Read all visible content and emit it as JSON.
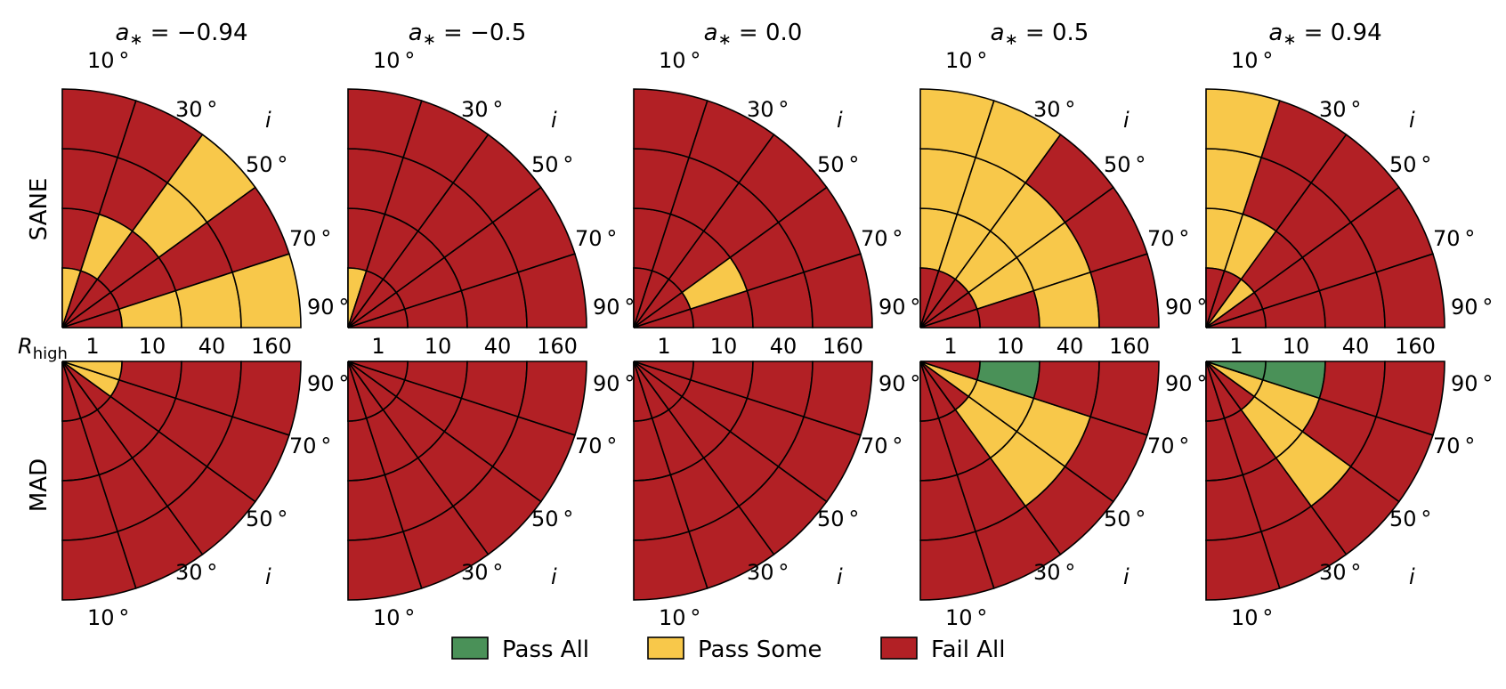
{
  "chart_data": {
    "type": "polar-grid",
    "colors": {
      "pass_all": "#4a9158",
      "pass_some": "#f8c84a",
      "fail_all": "#b22025",
      "edge": "#000000"
    },
    "legend": [
      {
        "key": "pass_all",
        "label": "Pass All"
      },
      {
        "key": "pass_some",
        "label": "Pass Some"
      },
      {
        "key": "fail_all",
        "label": "Fail All"
      }
    ],
    "legend_placement": "bottom-center",
    "radial_axis": {
      "name": "R",
      "subscript": "high",
      "ticks": [
        "1",
        "10",
        "40",
        "160"
      ]
    },
    "inclination_axis": {
      "name": "i",
      "ticks": [
        "10",
        "30",
        "50",
        "70",
        "90"
      ],
      "unit": "°"
    },
    "rows": [
      "SANE",
      "MAD"
    ],
    "columns": [
      {
        "a_star": "−0.94",
        "SANE": [
          [
            "Y",
            "R",
            "R",
            "R",
            "R"
          ],
          [
            "R",
            "R",
            "Y",
            "R",
            "R"
          ],
          [
            "R",
            "R",
            "R",
            "Y",
            "Y"
          ],
          [
            "R",
            "R",
            "R",
            "R",
            "R"
          ],
          [
            "R",
            "R",
            "Y",
            "Y",
            "Y"
          ]
        ],
        "MAD": [
          [
            "R",
            "R",
            "R",
            "R",
            "R"
          ],
          [
            "R",
            "R",
            "R",
            "R",
            "R"
          ],
          [
            "R",
            "R",
            "R",
            "R",
            "R"
          ],
          [
            "Y",
            "R",
            "R",
            "R",
            "R"
          ],
          [
            "Y",
            "R",
            "R",
            "R",
            "R"
          ]
        ]
      },
      {
        "a_star": "−0.5",
        "SANE": [
          [
            "Y",
            "R",
            "R",
            "R",
            "R"
          ],
          [
            "R",
            "R",
            "R",
            "R",
            "R"
          ],
          [
            "R",
            "R",
            "R",
            "R",
            "R"
          ],
          [
            "R",
            "R",
            "R",
            "R",
            "R"
          ],
          [
            "R",
            "R",
            "R",
            "R",
            "R"
          ]
        ],
        "MAD": [
          [
            "R",
            "R",
            "R",
            "R",
            "R"
          ],
          [
            "R",
            "R",
            "R",
            "R",
            "R"
          ],
          [
            "R",
            "R",
            "R",
            "R",
            "R"
          ],
          [
            "R",
            "R",
            "R",
            "R",
            "R"
          ],
          [
            "R",
            "R",
            "R",
            "R",
            "R"
          ]
        ]
      },
      {
        "a_star": "0.0",
        "SANE": [
          [
            "R",
            "R",
            "R",
            "R",
            "R"
          ],
          [
            "R",
            "R",
            "R",
            "R",
            "R"
          ],
          [
            "R",
            "Y",
            "R",
            "R",
            "R"
          ],
          [
            "R",
            "Y",
            "Y",
            "R",
            "R"
          ],
          [
            "R",
            "R",
            "R",
            "R",
            "R"
          ]
        ],
        "MAD": [
          [
            "R",
            "R",
            "R",
            "R",
            "R"
          ],
          [
            "R",
            "R",
            "R",
            "R",
            "R"
          ],
          [
            "R",
            "R",
            "R",
            "R",
            "R"
          ],
          [
            "R",
            "R",
            "R",
            "R",
            "R"
          ],
          [
            "R",
            "R",
            "R",
            "R",
            "R"
          ]
        ]
      },
      {
        "a_star": "0.5",
        "SANE": [
          [
            "R",
            "Y",
            "Y",
            "Y",
            "Y"
          ],
          [
            "R",
            "Y",
            "Y",
            "Y",
            "Y"
          ],
          [
            "R",
            "Y",
            "Y",
            "Y",
            "R"
          ],
          [
            "R",
            "R",
            "Y",
            "Y",
            "R"
          ],
          [
            "R",
            "R",
            "R",
            "Y",
            "R"
          ]
        ],
        "MAD": [
          [
            "R",
            "R",
            "R",
            "R",
            "R"
          ],
          [
            "R",
            "R",
            "R",
            "R",
            "R"
          ],
          [
            "R",
            "R",
            "Y",
            "Y",
            "R"
          ],
          [
            "Y",
            "Y",
            "Y",
            "Y",
            "R"
          ],
          [
            "R",
            "R",
            "G",
            "R",
            "R"
          ]
        ]
      },
      {
        "a_star": "0.94",
        "SANE": [
          [
            "R",
            "Y",
            "Y",
            "Y",
            "Y"
          ],
          [
            "R",
            "Y",
            "Y",
            "R",
            "R"
          ],
          [
            "Y",
            "R",
            "R",
            "R",
            "R"
          ],
          [
            "R",
            "R",
            "R",
            "R",
            "R"
          ],
          [
            "R",
            "R",
            "R",
            "R",
            "R"
          ]
        ],
        "MAD": [
          [
            "R",
            "R",
            "R",
            "R",
            "R"
          ],
          [
            "R",
            "R",
            "R",
            "R",
            "R"
          ],
          [
            "R",
            "R",
            "Y",
            "Y",
            "R"
          ],
          [
            "Y",
            "R",
            "Y",
            "R",
            "R"
          ],
          [
            "G",
            "G",
            "G",
            "R",
            "R"
          ]
        ]
      }
    ]
  }
}
